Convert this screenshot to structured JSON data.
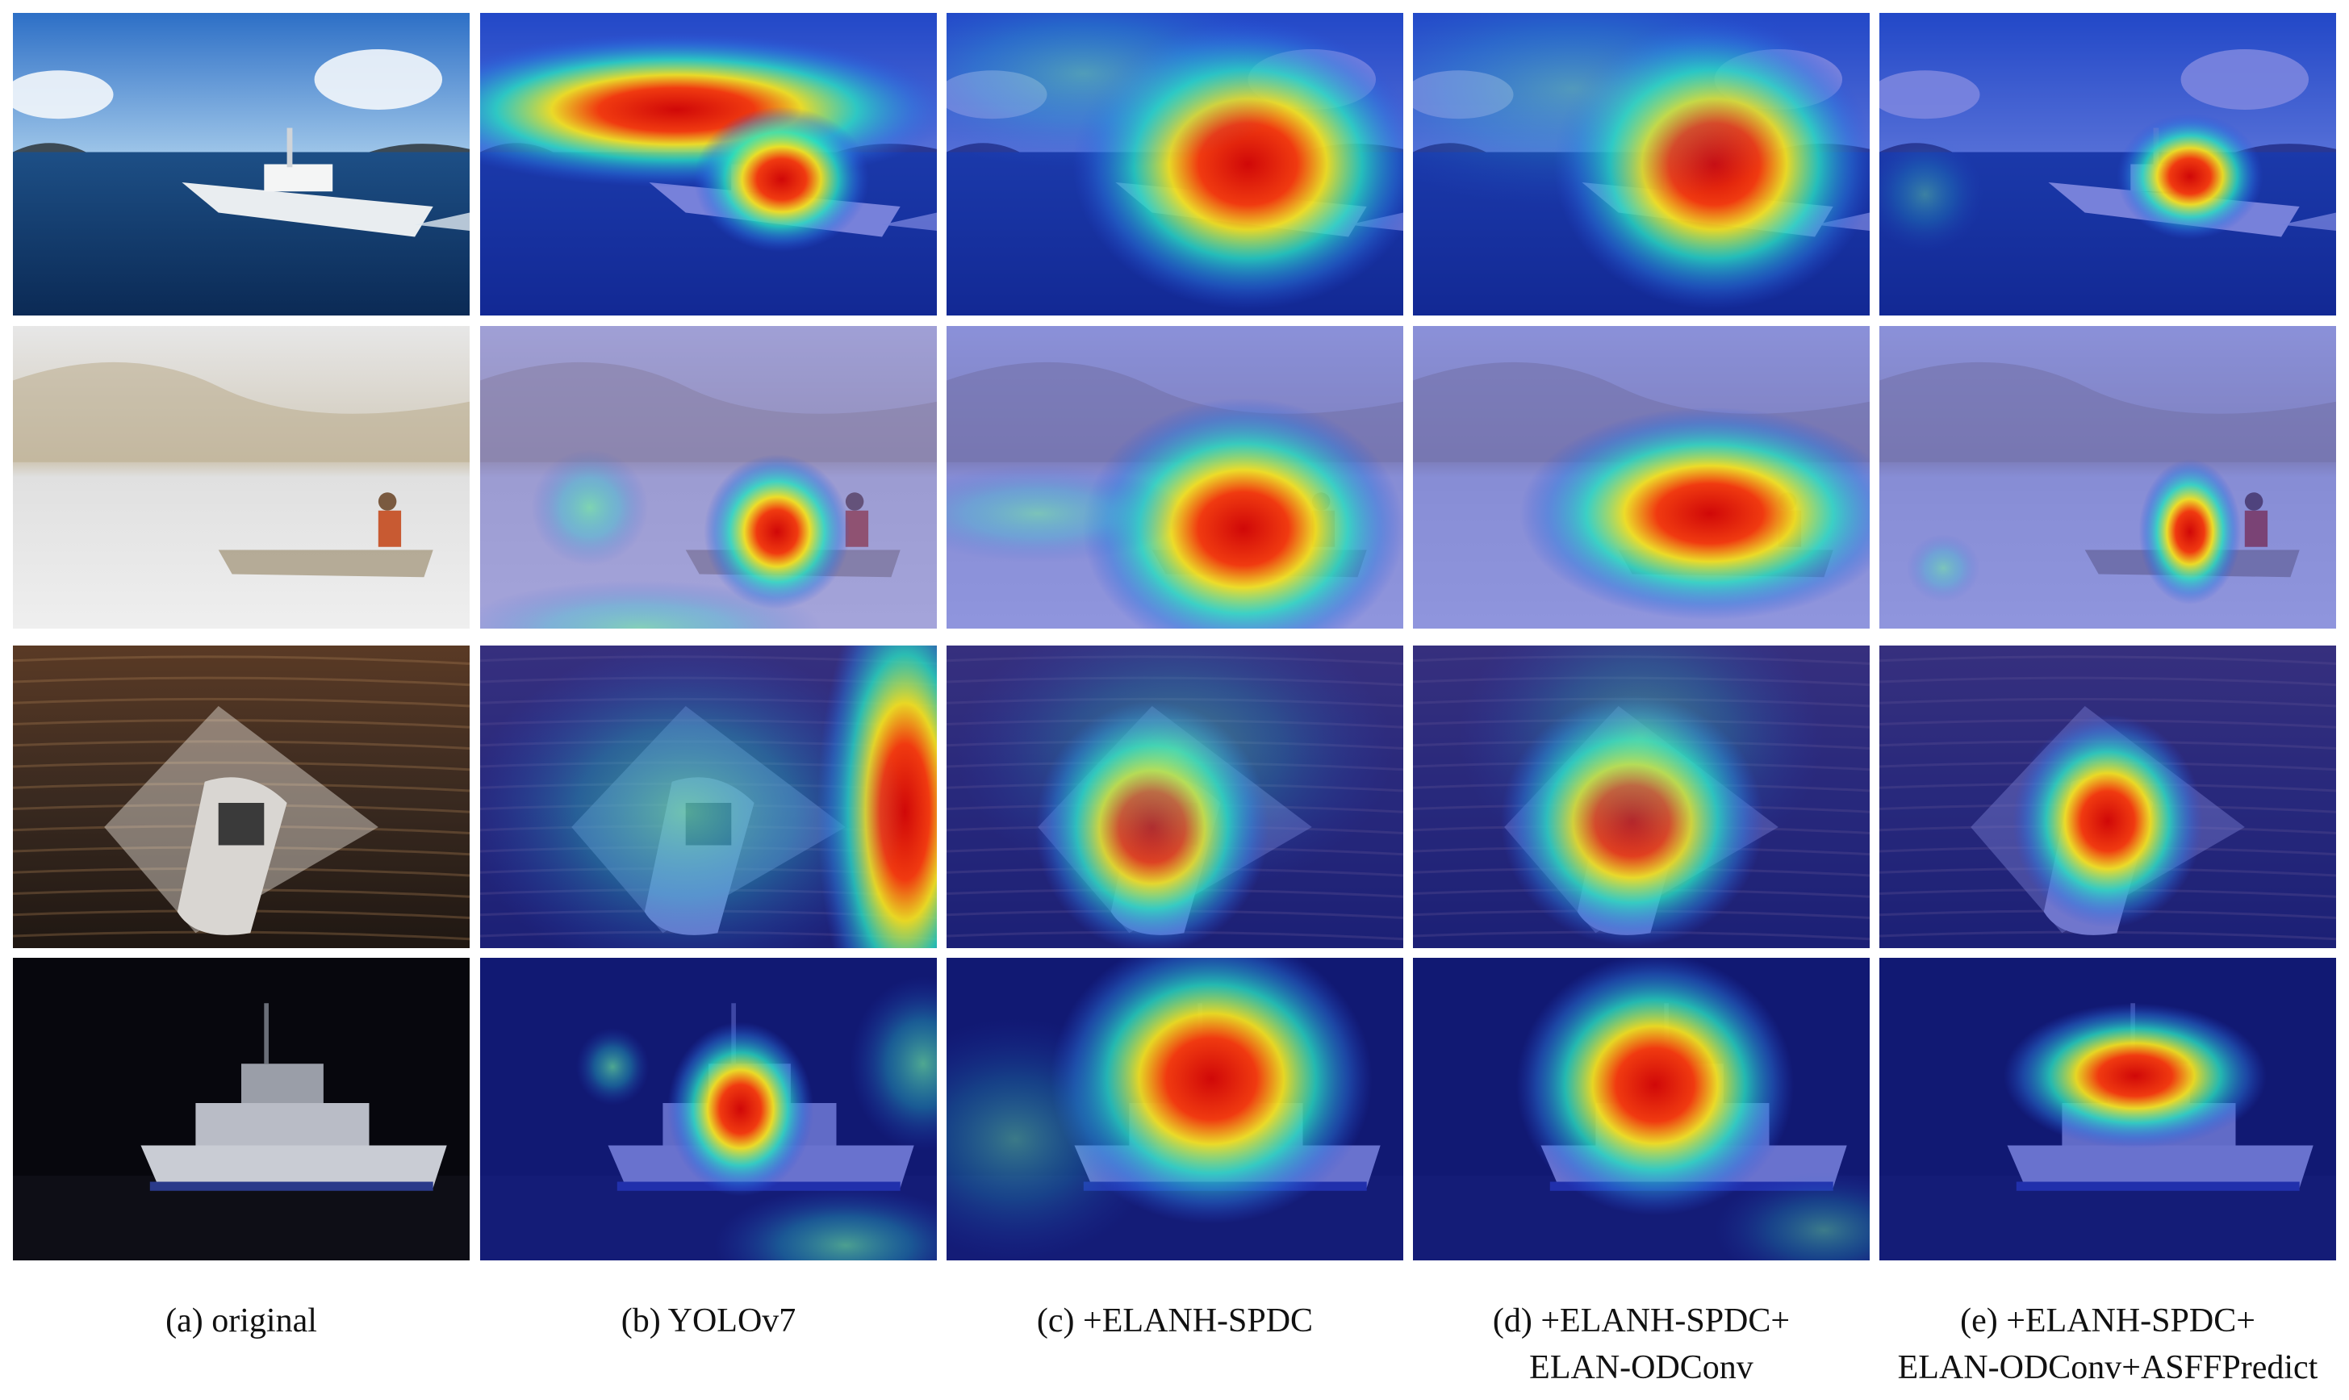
{
  "columns": [
    {
      "id": "original",
      "caption": [
        "(a) original"
      ]
    },
    {
      "id": "yolov7",
      "caption": [
        "(b) YOLOv7"
      ]
    },
    {
      "id": "elanh-spdc",
      "caption": [
        "(c) +ELANH-SPDC"
      ]
    },
    {
      "id": "elanh-spdc-odconv",
      "caption": [
        "(d) +ELANH-SPDC+",
        "ELAN-ODConv"
      ]
    },
    {
      "id": "elanh-spdc-odconv-asff",
      "caption": [
        "(e) +ELANH-SPDC+",
        "ELAN-ODConv+ASFFPredict"
      ]
    }
  ],
  "rows": [
    {
      "scene": "ship-open-sea",
      "tint": "#0a3f86"
    },
    {
      "scene": "canoe-in-fog",
      "tint": "#8a8fa8"
    },
    {
      "scene": "speedboat-wake",
      "tint": "#3a2a20"
    },
    {
      "scene": "ship-at-night",
      "tint": "#0a0a14"
    }
  ],
  "colors": {
    "heat_low": "#1a2fd0",
    "heat_mid": "#20e0c0",
    "heat_high": "#f0e020",
    "heat_peak": "#e01010"
  }
}
